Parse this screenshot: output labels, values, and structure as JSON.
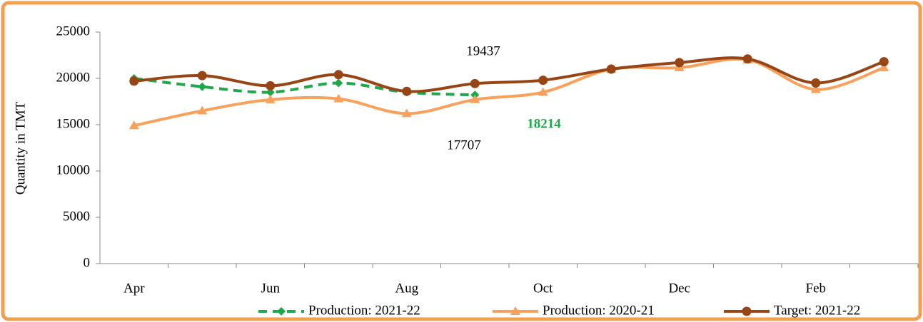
{
  "chart_data": {
    "type": "line",
    "y_label": "Quantity in TMT",
    "categories": [
      "Apr",
      null,
      "Jun",
      null,
      "Aug",
      null,
      "Oct",
      null,
      "Dec",
      null,
      "Feb",
      null
    ],
    "series": [
      {
        "name": "Production: 2021-22",
        "color": "#1fa84a",
        "marker": "diamond",
        "dashed": true,
        "values": [
          20000,
          19100,
          18500,
          19500,
          18500,
          18214,
          null,
          null,
          null,
          null,
          null,
          null
        ]
      },
      {
        "name": "Production: 2020-21",
        "color": "#f7a15c",
        "marker": "triangle",
        "dashed": false,
        "values": [
          14900,
          16500,
          17700,
          17800,
          16200,
          17707,
          18500,
          21000,
          21150,
          22000,
          18800,
          21150
        ]
      },
      {
        "name": "Target: 2021-22",
        "color": "#984515",
        "marker": "circle",
        "dashed": false,
        "values": [
          19700,
          20300,
          19200,
          20400,
          18600,
          19437,
          19800,
          21000,
          21700,
          22100,
          19500,
          21800
        ]
      }
    ],
    "annotations": [
      {
        "text": "19437",
        "color": "#000000",
        "bold": false
      },
      {
        "text": "17707",
        "color": "#000000",
        "bold": false
      },
      {
        "text": "18214",
        "color": "#1fa84a",
        "bold": true
      }
    ],
    "ylim": [
      0,
      25000
    ],
    "yticks": [
      0,
      5000,
      10000,
      15000,
      20000,
      25000
    ]
  }
}
